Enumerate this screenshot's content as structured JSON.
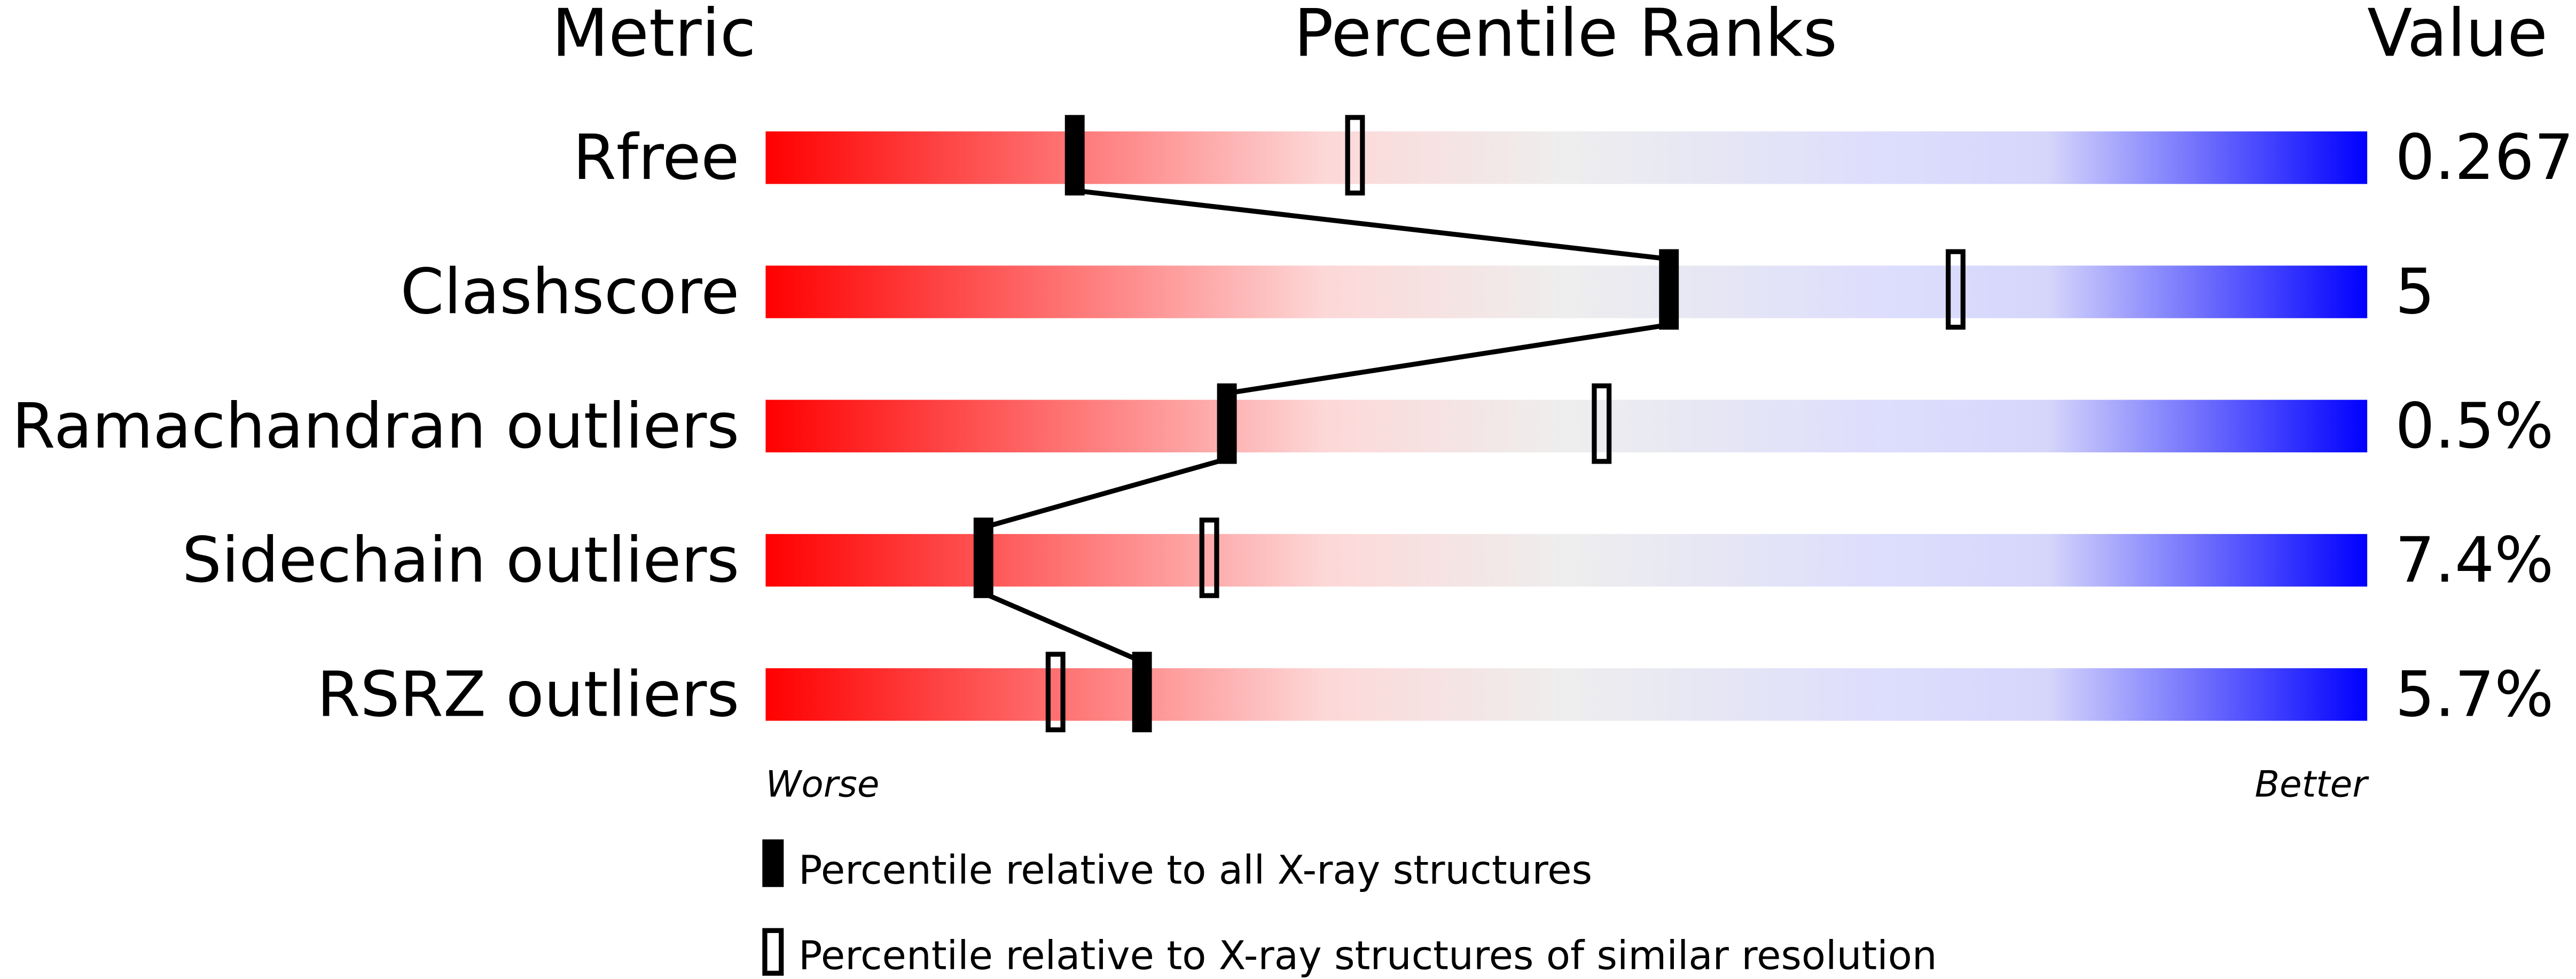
{
  "chart_data": {
    "type": "slider",
    "headers": {
      "metric": "Metric",
      "ranks": "Percentile Ranks",
      "value": "Value"
    },
    "xlim": [
      0,
      100
    ],
    "axis_labels": {
      "left": "Worse",
      "right": "Better"
    },
    "gradient_colors": [
      "#ff0000",
      "#fdd8d8",
      "#eeeeee",
      "#ddddfd",
      "#0000ff"
    ],
    "rows": [
      {
        "metric": "Rfree",
        "value": "0.267",
        "percentile_all": 19.3,
        "percentile_similar": 36.8
      },
      {
        "metric": "Clashscore",
        "value": "5",
        "percentile_all": 56.4,
        "percentile_similar": 74.3
      },
      {
        "metric": "Ramachandran outliers",
        "value": "0.5%",
        "percentile_all": 28.8,
        "percentile_similar": 52.2
      },
      {
        "metric": "Sidechain outliers",
        "value": "7.4%",
        "percentile_all": 13.6,
        "percentile_similar": 27.7
      },
      {
        "metric": "RSRZ outliers",
        "value": "5.7%",
        "percentile_all": 23.5,
        "percentile_similar": 18.1
      }
    ],
    "legend": [
      {
        "marker": "filled",
        "label": "Percentile relative to all X-ray structures"
      },
      {
        "marker": "open",
        "label": "Percentile relative to X-ray structures of similar resolution"
      }
    ]
  }
}
